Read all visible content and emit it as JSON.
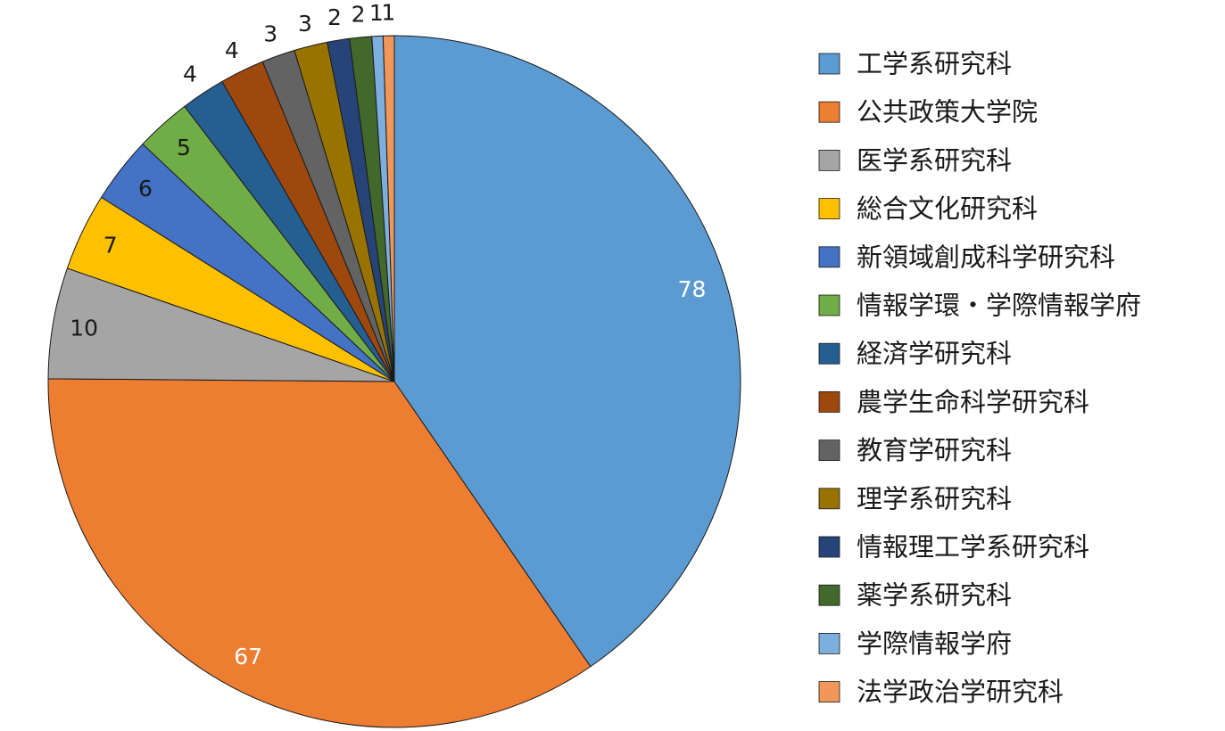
{
  "chart_data": {
    "type": "pie",
    "title": "",
    "legend_position": "right",
    "start": "top",
    "direction": "clockwise",
    "slices": [
      {
        "label": "工学系研究科",
        "value": 78,
        "color": "#5b9bd1"
      },
      {
        "label": "公共政策大学院",
        "value": 67,
        "color": "#ed7d31"
      },
      {
        "label": "医学系研究科",
        "value": 10,
        "color": "#a5a5a5"
      },
      {
        "label": "総合文化研究科",
        "value": 7,
        "color": "#ffc000"
      },
      {
        "label": "新領域創成科学研究科",
        "value": 6,
        "color": "#4472c4"
      },
      {
        "label": "情報学環・学際情報学府",
        "value": 5,
        "color": "#70ad47"
      },
      {
        "label": "経済学研究科",
        "value": 4,
        "color": "#255e91"
      },
      {
        "label": "農学生命科学研究科",
        "value": 4,
        "color": "#9e480e"
      },
      {
        "label": "教育学研究科",
        "value": 3,
        "color": "#636363"
      },
      {
        "label": "理学系研究科",
        "value": 3,
        "color": "#997300"
      },
      {
        "label": "情報理工学系研究科",
        "value": 2,
        "color": "#264478"
      },
      {
        "label": "薬学系研究科",
        "value": 2,
        "color": "#43682b"
      },
      {
        "label": "学際情報学府",
        "value": 1,
        "color": "#7cafdd"
      },
      {
        "label": "法学政治学研究科",
        "value": 1,
        "color": "#f1975a"
      }
    ]
  }
}
